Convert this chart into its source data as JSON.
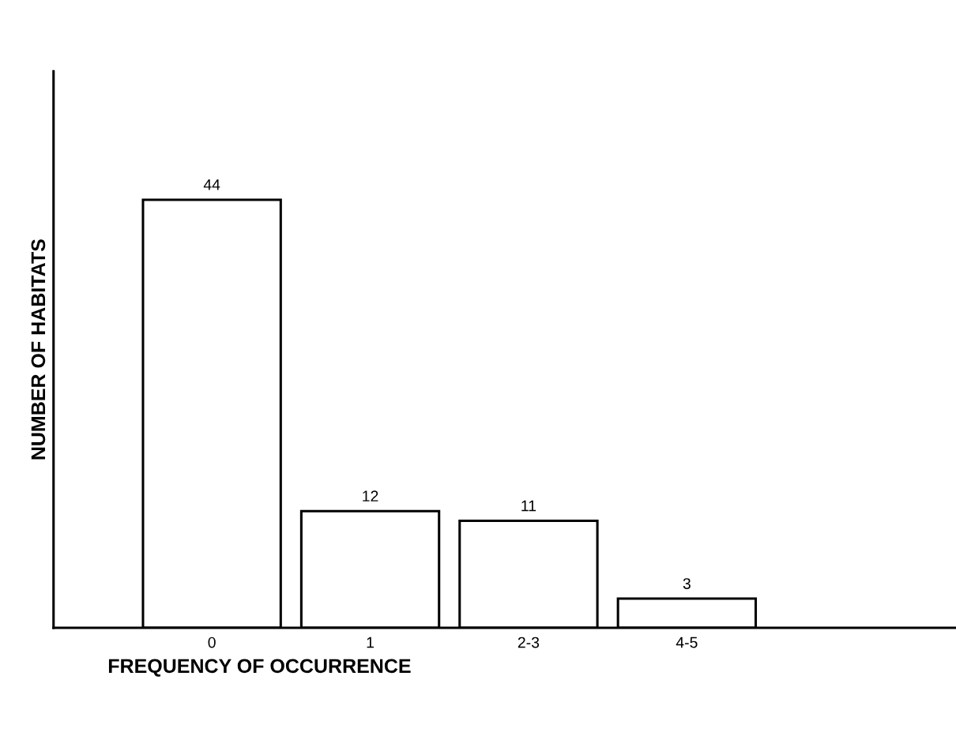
{
  "chart_data": {
    "type": "bar",
    "xlabel": "FREQUENCY OF OCCURRENCE",
    "ylabel": "NUMBER OF HABITATS",
    "categories": [
      "0",
      "1",
      "2-3",
      "4-5"
    ],
    "values": [
      44,
      12,
      11,
      3
    ],
    "color": "#ffffff",
    "data_labels": true,
    "grid": false,
    "legend": false
  }
}
